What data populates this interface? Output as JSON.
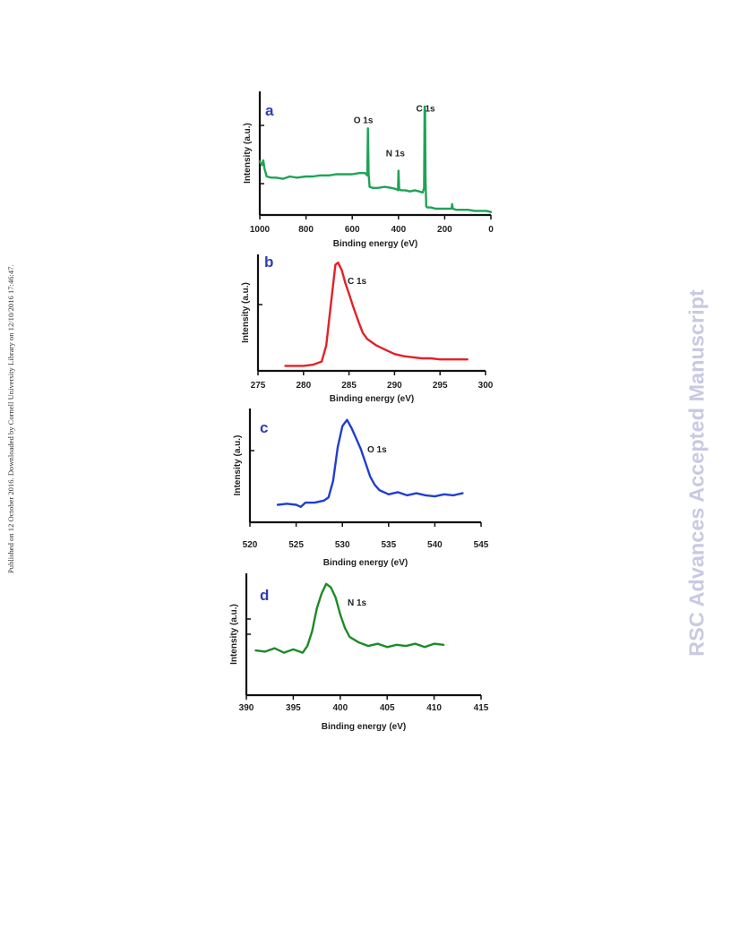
{
  "side_note": "Published on 12 October 2016. Downloaded by Cornell University Library on 12/10/2016 17:46:47.",
  "watermark": "RSC Advances Accepted Manuscript",
  "chart_data": [
    {
      "id": "a",
      "type": "line",
      "panel_letter": "a",
      "xlabel": "Binding energy (eV)",
      "ylabel": "Intensity (a.u.)",
      "xlim": [
        1000,
        0
      ],
      "x_reversed": true,
      "xticks": [
        1000,
        800,
        600,
        400,
        200,
        0
      ],
      "ylim": [
        0,
        100
      ],
      "color": "#1fa356",
      "annotations": [
        {
          "text": "O 1s",
          "x": 532,
          "y": 74
        },
        {
          "text": "N 1s",
          "x": 400,
          "y": 45
        },
        {
          "text": "C 1s",
          "x": 285,
          "y": 84
        }
      ],
      "series": [
        {
          "x": [
            1000,
            990,
            985,
            980,
            970,
            950,
            930,
            900,
            870,
            840,
            800,
            770,
            740,
            700,
            670,
            640,
            600,
            570,
            545,
            535,
            532,
            529,
            525,
            510,
            490,
            460,
            430,
            410,
            402,
            400,
            397,
            390,
            370,
            350,
            330,
            310,
            295,
            289,
            287,
            285,
            283,
            280,
            275,
            270,
            260,
            240,
            220,
            200,
            180,
            170,
            168,
            165,
            150,
            130,
            100,
            70,
            40,
            20,
            0
          ],
          "y": [
            45,
            42,
            46,
            39,
            32,
            31,
            31,
            30,
            32,
            31,
            32,
            32,
            33,
            33,
            34,
            34,
            34,
            35,
            35,
            33,
            74,
            34,
            23,
            22,
            22,
            23,
            22,
            21,
            20,
            37,
            21,
            20,
            20,
            19,
            20,
            19,
            18,
            22,
            93,
            90,
            30,
            6,
            5,
            5,
            5,
            4,
            4,
            4,
            4,
            4,
            8,
            4,
            3,
            3,
            3,
            2,
            2,
            2,
            1
          ]
        }
      ]
    },
    {
      "id": "b",
      "type": "line",
      "panel_letter": "b",
      "peak_label": "C 1s",
      "xlabel": "Binding energy (eV)",
      "ylabel": "Intensity (a.u.)",
      "xlim": [
        275,
        300
      ],
      "xticks": [
        275,
        280,
        285,
        290,
        295,
        300
      ],
      "ylim": [
        0,
        100
      ],
      "color": "#e52027",
      "series": [
        {
          "x": [
            278,
            279,
            280,
            281,
            282,
            282.5,
            283,
            283.5,
            283.8,
            284.2,
            284.6,
            285,
            285.5,
            286,
            286.5,
            287,
            288,
            289,
            290,
            291,
            292,
            293,
            294,
            295,
            296,
            297,
            298
          ],
          "y": [
            3,
            3,
            3,
            4,
            7,
            22,
            60,
            97,
            99,
            92,
            80,
            70,
            57,
            45,
            34,
            28,
            22,
            18,
            14,
            12,
            11,
            10,
            10,
            9,
            9,
            9,
            9
          ]
        }
      ]
    },
    {
      "id": "c",
      "type": "line",
      "panel_letter": "c",
      "peak_label": "O 1s",
      "xlabel": "Binding energy (eV)",
      "ylabel": "Intensity (a.u.)",
      "xlim": [
        520,
        545
      ],
      "xticks": [
        520,
        525,
        530,
        535,
        540,
        545
      ],
      "ylim": [
        0,
        100
      ],
      "color": "#1f3fcf",
      "series": [
        {
          "x": [
            523,
            524,
            525,
            525.5,
            526,
            527,
            528,
            528.5,
            529,
            529.5,
            530,
            530.5,
            531,
            531.5,
            532,
            532.5,
            533,
            533.5,
            534,
            535,
            536,
            537,
            538,
            539,
            540,
            541,
            542,
            543
          ],
          "y": [
            15,
            16,
            15,
            13,
            17,
            17,
            19,
            22,
            38,
            70,
            90,
            96,
            88,
            78,
            68,
            55,
            42,
            34,
            29,
            25,
            27,
            24,
            26,
            24,
            23,
            25,
            24,
            26
          ]
        }
      ]
    },
    {
      "id": "d",
      "type": "line",
      "panel_letter": "d",
      "peak_label": "N 1s",
      "xlabel": "Binding energy (eV)",
      "ylabel": "Intensity (a.u.)",
      "xlim": [
        390,
        415
      ],
      "xticks": [
        390,
        395,
        400,
        405,
        410,
        415
      ],
      "ylim": [
        0,
        100
      ],
      "color": "#1e8a28",
      "series": [
        {
          "x": [
            391,
            392,
            393,
            394,
            395,
            396,
            396.5,
            397,
            397.5,
            398,
            398.5,
            399,
            399.5,
            400,
            400.5,
            401,
            402,
            403,
            404,
            405,
            406,
            407,
            408,
            409,
            410,
            411
          ],
          "y": [
            38,
            37,
            40,
            36,
            39,
            36,
            42,
            55,
            75,
            88,
            97,
            94,
            85,
            70,
            58,
            50,
            45,
            42,
            44,
            41,
            43,
            42,
            44,
            41,
            44,
            43
          ]
        }
      ]
    }
  ]
}
